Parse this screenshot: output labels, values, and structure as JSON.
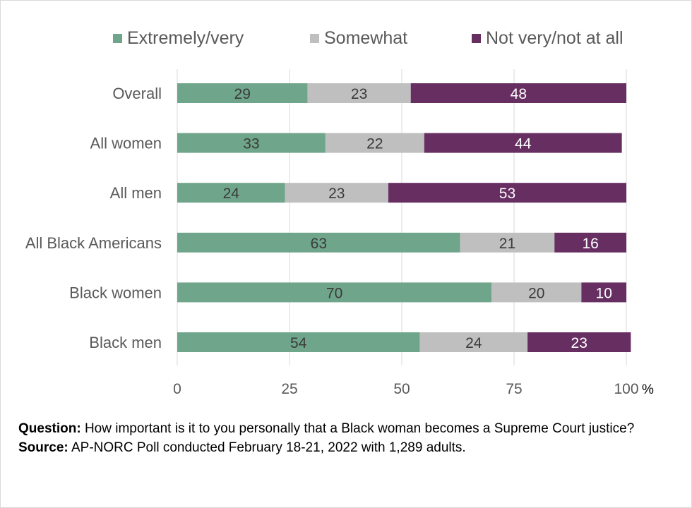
{
  "chart_data": {
    "type": "bar",
    "orientation": "horizontal",
    "stacked": true,
    "categories": [
      "Overall",
      "All women",
      "All men",
      "All Black Americans",
      "Black women",
      "Black men"
    ],
    "series": [
      {
        "name": "Extremely/very",
        "color": "#6fa58a",
        "label_color": "#3a3a3a",
        "values": [
          29,
          33,
          24,
          63,
          70,
          54
        ]
      },
      {
        "name": "Somewhat",
        "color": "#bfbfbf",
        "label_color": "#3a3a3a",
        "values": [
          23,
          22,
          23,
          21,
          20,
          24
        ]
      },
      {
        "name": "Not very/not at all",
        "color": "#672e62",
        "label_color": "#ffffff",
        "values": [
          48,
          44,
          53,
          16,
          10,
          23
        ]
      }
    ],
    "xlim": [
      0,
      100
    ],
    "xticks": [
      0,
      25,
      50,
      75,
      100
    ],
    "x_unit": "%",
    "grid": "vertical",
    "legend_position": "top"
  },
  "notes": {
    "question_label": "Question:",
    "question_text": " How important is it to you personally that a Black woman becomes a Supreme Court justice?",
    "source_label": "Source:",
    "source_text": " AP-NORC Poll conducted February 18-21, 2022 with 1,289 adults."
  }
}
